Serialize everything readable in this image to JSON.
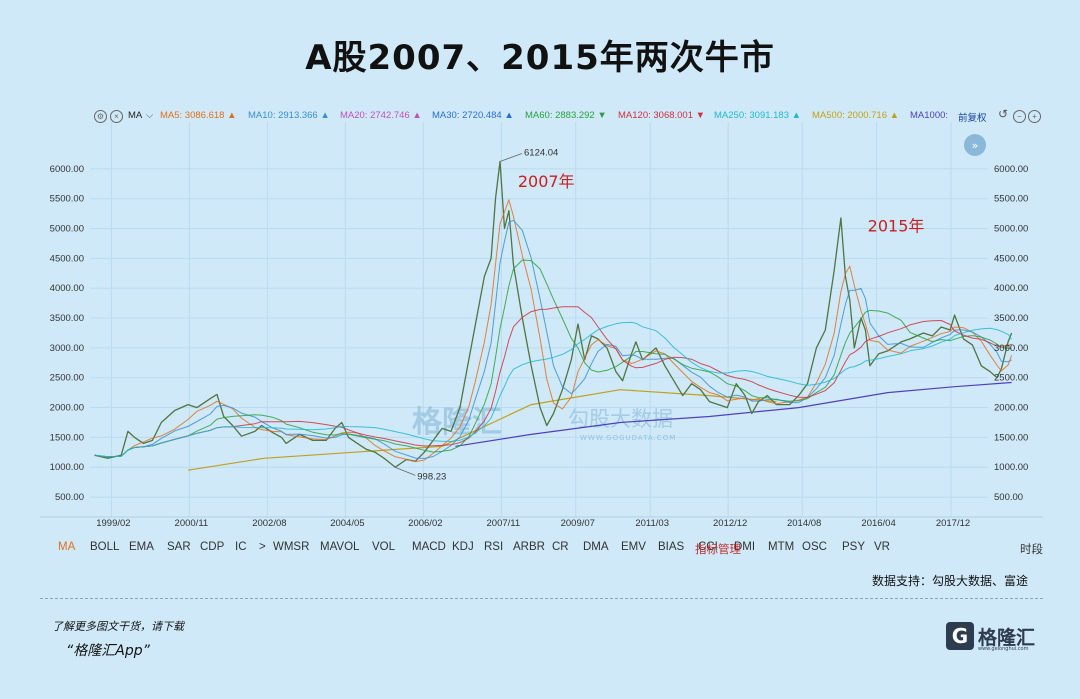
{
  "title": "A股2007、2015年两次牛市",
  "toolbar": {
    "ma_label": "MA",
    "ma_items": [
      {
        "label": "MA5: 3086.618",
        "color": "#e07020",
        "trend": "up"
      },
      {
        "label": "MA10: 2913.366",
        "color": "#3a8fd0",
        "trend": "up"
      },
      {
        "label": "MA20: 2742.746",
        "color": "#c050c0",
        "trend": "up"
      },
      {
        "label": "MA30: 2720.484",
        "color": "#2a6fd8",
        "trend": "up"
      },
      {
        "label": "MA60: 2883.292",
        "color": "#2aa040",
        "trend": "down"
      },
      {
        "label": "MA120: 3068.001",
        "color": "#d03040",
        "trend": "down"
      },
      {
        "label": "MA250: 3091.183",
        "color": "#20b8d0",
        "trend": "up"
      },
      {
        "label": "MA500: 2000.716",
        "color": "#c0a020",
        "trend": "up"
      },
      {
        "label": "MA1000:",
        "color": "#5040c0",
        "trend": ""
      }
    ],
    "adjust_label": "前复权"
  },
  "indicators": [
    "MA",
    "BOLL",
    "EMA",
    "SAR",
    "CDP",
    "IC",
    ">",
    "WMSR",
    "MAVOL",
    "VOL",
    "MACD",
    "KDJ",
    "RSI",
    "ARBR",
    "CR",
    "DMA",
    "EMV",
    "BIAS",
    "CCI",
    "DMI",
    "MTM",
    "OSC",
    "PSY",
    "VR"
  ],
  "indicator_manage": "指标管理",
  "period_label": "时段",
  "watermark": {
    "left": "格隆汇",
    "right": "勾股大数据",
    "right_sub": "WWW.GOGUDATA.COM"
  },
  "source_text": "数据支持：勾股大数据、富途",
  "promo_line1": "了解更多图文干货，请下载",
  "promo_line2": "“格隆汇App”",
  "logo": {
    "mark": "G",
    "name": "格隆汇",
    "sub": "www.gelonghui.com"
  },
  "chart_data": {
    "type": "line",
    "title": "A股2007、2015年两次牛市",
    "xlabel": "",
    "ylabel": "",
    "ylim": [
      300,
      6450
    ],
    "xlim": [
      1998.6,
      2018.75
    ],
    "yticks": [
      500,
      1000,
      1500,
      2000,
      2500,
      3000,
      3500,
      4000,
      4500,
      5000,
      5500,
      6000
    ],
    "ytick_labels": [
      "500.00",
      "1000.00",
      "1500.00",
      "2000.00",
      "2500.00",
      "3000.00",
      "3500.00",
      "4000.00",
      "4500.00",
      "5000.00",
      "5500.00",
      "6000.00"
    ],
    "xticks": [
      {
        "label": "1999/02",
        "x": 1999.08
      },
      {
        "label": "2000/11",
        "x": 2000.83
      },
      {
        "label": "2002/08",
        "x": 2002.58
      },
      {
        "label": "2004/05",
        "x": 2004.33
      },
      {
        "label": "2006/02",
        "x": 2006.08
      },
      {
        "label": "2007/11",
        "x": 2007.83
      },
      {
        "label": "2009/07",
        "x": 2009.5
      },
      {
        "label": "2011/03",
        "x": 2011.17
      },
      {
        "label": "2012/12",
        "x": 2012.92
      },
      {
        "label": "2014/08",
        "x": 2014.58
      },
      {
        "label": "2016/04",
        "x": 2016.25
      },
      {
        "label": "2017/12",
        "x": 2017.92
      }
    ],
    "grid": true,
    "series": [
      {
        "name": "",
        "color": "#3a7f45",
        "width": 1.3,
        "points": [
          [
            1998.7,
            1200
          ],
          [
            1999.0,
            1150
          ],
          [
            1999.3,
            1200
          ],
          [
            1999.45,
            1600
          ],
          [
            1999.6,
            1500
          ],
          [
            1999.8,
            1400
          ],
          [
            2000.0,
            1450
          ],
          [
            2000.2,
            1750
          ],
          [
            2000.5,
            1950
          ],
          [
            2000.8,
            2050
          ],
          [
            2001.0,
            2000
          ],
          [
            2001.3,
            2150
          ],
          [
            2001.45,
            2220
          ],
          [
            2001.6,
            1850
          ],
          [
            2001.8,
            1700
          ],
          [
            2002.0,
            1520
          ],
          [
            2002.3,
            1600
          ],
          [
            2002.45,
            1700
          ],
          [
            2002.7,
            1580
          ],
          [
            2002.9,
            1500
          ],
          [
            2003.0,
            1400
          ],
          [
            2003.3,
            1550
          ],
          [
            2003.6,
            1450
          ],
          [
            2003.9,
            1450
          ],
          [
            2004.1,
            1650
          ],
          [
            2004.25,
            1750
          ],
          [
            2004.4,
            1500
          ],
          [
            2004.6,
            1400
          ],
          [
            2004.8,
            1300
          ],
          [
            2005.0,
            1250
          ],
          [
            2005.2,
            1150
          ],
          [
            2005.45,
            1000
          ],
          [
            2005.7,
            1130
          ],
          [
            2005.9,
            1100
          ],
          [
            2006.1,
            1250
          ],
          [
            2006.3,
            1450
          ],
          [
            2006.5,
            1650
          ],
          [
            2006.7,
            1600
          ],
          [
            2006.9,
            2000
          ],
          [
            2007.1,
            2800
          ],
          [
            2007.25,
            3400
          ],
          [
            2007.45,
            4200
          ],
          [
            2007.6,
            4500
          ],
          [
            2007.7,
            5500
          ],
          [
            2007.8,
            6124
          ],
          [
            2007.9,
            5000
          ],
          [
            2008.0,
            5300
          ],
          [
            2008.1,
            4400
          ],
          [
            2008.3,
            3500
          ],
          [
            2008.5,
            2700
          ],
          [
            2008.7,
            2000
          ],
          [
            2008.85,
            1700
          ],
          [
            2009.0,
            1900
          ],
          [
            2009.2,
            2300
          ],
          [
            2009.4,
            2800
          ],
          [
            2009.55,
            3400
          ],
          [
            2009.7,
            2800
          ],
          [
            2009.85,
            3200
          ],
          [
            2010.0,
            3150
          ],
          [
            2010.2,
            3000
          ],
          [
            2010.4,
            2600
          ],
          [
            2010.55,
            2450
          ],
          [
            2010.75,
            2900
          ],
          [
            2010.85,
            3100
          ],
          [
            2011.0,
            2800
          ],
          [
            2011.3,
            3000
          ],
          [
            2011.5,
            2700
          ],
          [
            2011.7,
            2450
          ],
          [
            2011.9,
            2200
          ],
          [
            2012.1,
            2400
          ],
          [
            2012.3,
            2300
          ],
          [
            2012.5,
            2100
          ],
          [
            2012.7,
            2050
          ],
          [
            2012.9,
            2000
          ],
          [
            2013.1,
            2400
          ],
          [
            2013.3,
            2200
          ],
          [
            2013.45,
            1900
          ],
          [
            2013.6,
            2100
          ],
          [
            2013.8,
            2200
          ],
          [
            2014.0,
            2050
          ],
          [
            2014.3,
            2050
          ],
          [
            2014.5,
            2200
          ],
          [
            2014.7,
            2400
          ],
          [
            2014.9,
            3000
          ],
          [
            2015.1,
            3300
          ],
          [
            2015.3,
            4300
          ],
          [
            2015.45,
            5178
          ],
          [
            2015.55,
            4200
          ],
          [
            2015.65,
            3800
          ],
          [
            2015.75,
            3000
          ],
          [
            2015.9,
            3500
          ],
          [
            2016.0,
            3300
          ],
          [
            2016.1,
            2700
          ],
          [
            2016.3,
            2900
          ],
          [
            2016.5,
            2950
          ],
          [
            2016.8,
            3100
          ],
          [
            2017.0,
            3150
          ],
          [
            2017.3,
            3250
          ],
          [
            2017.5,
            3200
          ],
          [
            2017.7,
            3350
          ],
          [
            2017.9,
            3300
          ],
          [
            2018.0,
            3550
          ],
          [
            2018.2,
            3150
          ],
          [
            2018.4,
            3050
          ],
          [
            2018.6,
            2700
          ],
          [
            2018.8,
            2600
          ],
          [
            2018.95,
            2500
          ],
          [
            2019.05,
            2650
          ],
          [
            2019.2,
            3100
          ],
          [
            2019.28,
            3250
          ]
        ]
      },
      {
        "name": "",
        "color": "#e07020",
        "width": 1,
        "smooth": 3,
        "from": 0
      },
      {
        "name": "",
        "color": "#3a8fd0",
        "width": 1,
        "smooth": 5,
        "from": 0
      },
      {
        "name": "",
        "color": "#2aa040",
        "width": 1,
        "smooth": 9,
        "from": 0
      },
      {
        "name": "",
        "color": "#d03040",
        "width": 1,
        "smooth": 14,
        "from": 4
      },
      {
        "name": "",
        "color": "#20b8d0",
        "width": 1,
        "smooth": 22,
        "from": 0
      }
    ],
    "baselines": [
      {
        "color": "#c0a020",
        "points": [
          [
            2000.8,
            950
          ],
          [
            2002.5,
            1150
          ],
          [
            2004.5,
            1250
          ],
          [
            2006.5,
            1350
          ],
          [
            2008.5,
            2050
          ],
          [
            2010.5,
            2300
          ],
          [
            2012.5,
            2200
          ],
          [
            2014.0,
            2100
          ]
        ]
      },
      {
        "color": "#5040c0",
        "points": [
          [
            2006.8,
            1350
          ],
          [
            2008.5,
            1550
          ],
          [
            2010.5,
            1750
          ],
          [
            2012.5,
            1850
          ],
          [
            2014.5,
            2000
          ],
          [
            2016.5,
            2250
          ],
          [
            2018.0,
            2350
          ],
          [
            2019.28,
            2420
          ]
        ]
      }
    ],
    "annotations": [
      {
        "text": "6124.04",
        "x": 2007.8,
        "y": 6124,
        "kind": "peak-label"
      },
      {
        "text": "998.23",
        "x": 2005.45,
        "y": 998,
        "kind": "trough-label"
      },
      {
        "text": "2007年",
        "x": 2008.2,
        "y": 5700,
        "kind": "era-label"
      },
      {
        "text": "2015年",
        "x": 2016.05,
        "y": 4950,
        "kind": "era-label"
      }
    ]
  }
}
